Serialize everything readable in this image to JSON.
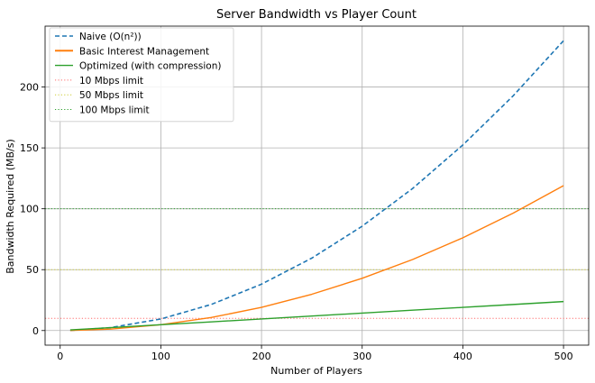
{
  "chart_data": {
    "type": "line",
    "title": "Server Bandwidth vs Player Count",
    "xlabel": "Number of Players",
    "ylabel": "Bandwidth Required (MB/s)",
    "xlim": [
      -15,
      525
    ],
    "ylim": [
      -12,
      250
    ],
    "xticks": [
      0,
      100,
      200,
      300,
      400,
      500
    ],
    "yticks": [
      0,
      50,
      100,
      150,
      200
    ],
    "grid": true,
    "legend_position": "top-left",
    "series": [
      {
        "name": "Naive (O(n²))",
        "color": "#1f77b4",
        "style": "dashed",
        "x": [
          10,
          50,
          100,
          150,
          200,
          250,
          300,
          350,
          400,
          450,
          500
        ],
        "y": [
          0.1,
          2.4,
          9.5,
          21.4,
          38.1,
          59.5,
          85.7,
          116.6,
          152.4,
          192.8,
          238.0
        ]
      },
      {
        "name": "Basic Interest Management",
        "color": "#ff7f0e",
        "style": "solid",
        "x": [
          10,
          50,
          100,
          150,
          200,
          250,
          300,
          350,
          400,
          450,
          500
        ],
        "y": [
          0.05,
          1.2,
          4.8,
          10.7,
          19.0,
          29.8,
          42.9,
          58.3,
          76.2,
          96.4,
          119.0
        ]
      },
      {
        "name": "Optimized (with compression)",
        "color": "#2ca02c",
        "style": "solid",
        "x": [
          10,
          50,
          100,
          150,
          200,
          250,
          300,
          350,
          400,
          450,
          500
        ],
        "y": [
          0.5,
          2.4,
          4.8,
          7.1,
          9.5,
          11.9,
          14.3,
          16.7,
          19.0,
          21.4,
          23.8
        ]
      }
    ],
    "reference_lines": [
      {
        "name": "10 Mbps limit",
        "y": 10,
        "color": "#ff6b6b"
      },
      {
        "name": "50 Mbps limit",
        "y": 50,
        "color": "#cccc33"
      },
      {
        "name": "100 Mbps limit",
        "y": 100,
        "color": "#2ca02c"
      }
    ]
  }
}
